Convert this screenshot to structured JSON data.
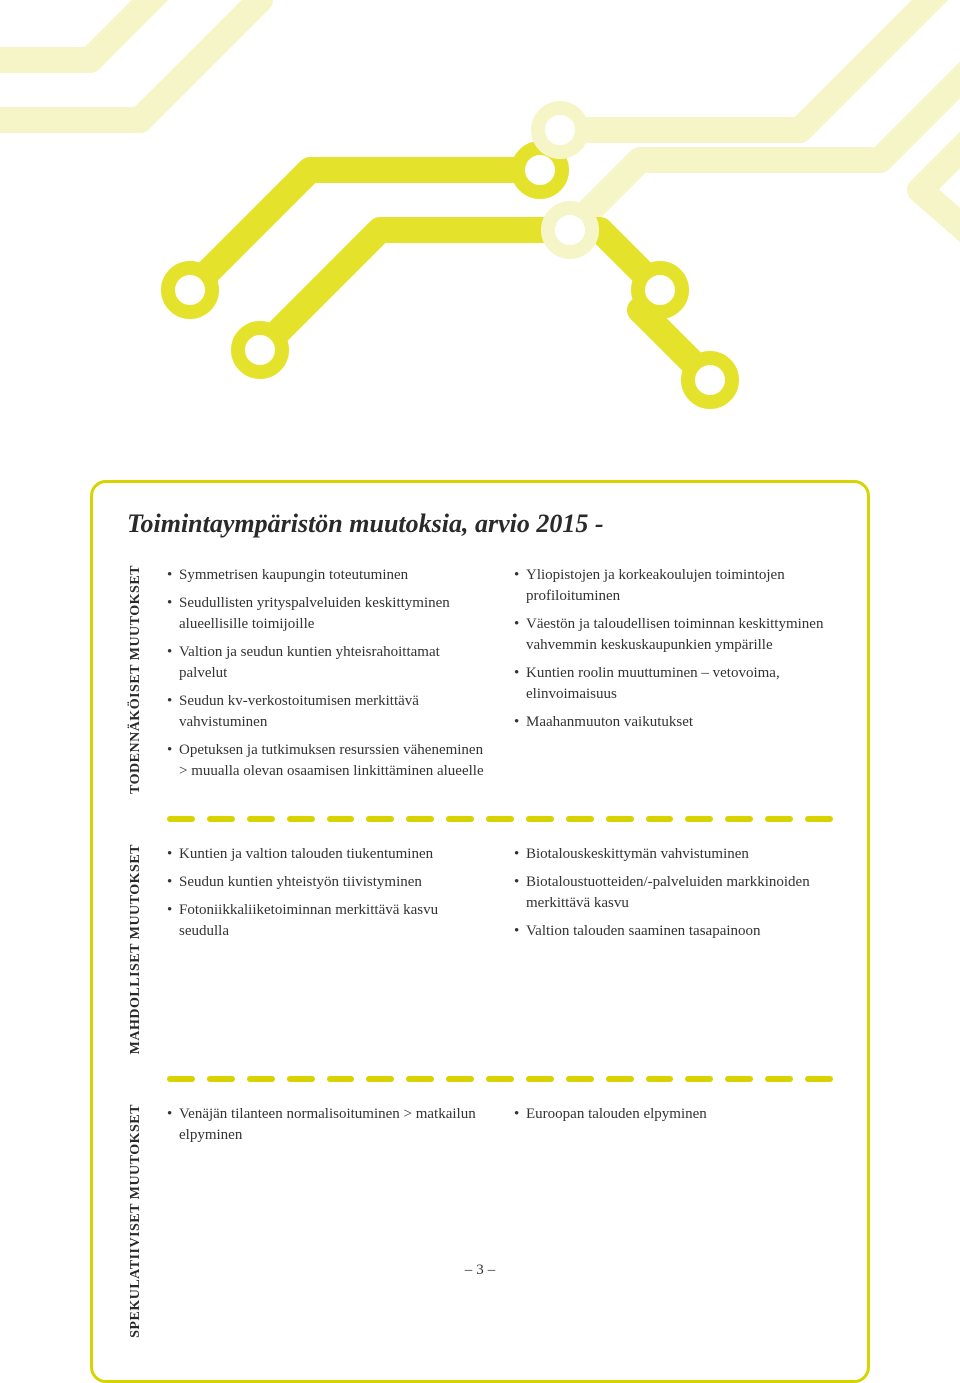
{
  "colors": {
    "accent": "#d7d200",
    "accent_light": "#f4f3b0",
    "text": "#2a2a2a",
    "background": "#ffffff"
  },
  "title": "Toimintaympäristön muutoksia, arvio 2015 -",
  "sections": [
    {
      "label": "TODENNÄKÖISET MUUTOKSET",
      "left": [
        "Symmetrisen kaupungin toteutuminen",
        "Seudullisten yrityspalveluiden keskittyminen alueellisille toimijoille",
        "Valtion ja seudun kuntien yhteisrahoittamat palvelut",
        "Seudun kv-verkostoitumisen merkittävä vahvistuminen",
        "Opetuksen ja tutkimuksen resurssien väheneminen > muualla olevan osaamisen linkittäminen alueelle"
      ],
      "right": [
        "Yliopistojen ja korkeakoulujen toimintojen profiloituminen",
        "Väestön ja taloudellisen toiminnan keskittyminen vahvemmin keskuskaupunkien ympärille",
        "Kuntien roolin muuttuminen – vetovoima, elinvoimaisuus",
        "Maahanmuuton vaikutukset"
      ]
    },
    {
      "label": "MAHDOLLISET MUUTOKSET",
      "left": [
        "Kuntien ja valtion talouden tiukentuminen",
        "Seudun kuntien yhteistyön tiivistyminen",
        "Fotoniikkaliiketoiminnan merkittävä kasvu seudulla"
      ],
      "right": [
        "Biotalouskeskittymän vahvistuminen",
        "Biotaloustuotteiden/-palveluiden markkinoiden merkittävä kasvu",
        "Valtion talouden saaminen tasapainoon"
      ]
    },
    {
      "label": "SPEKULATIIVISET MUUTOKSET",
      "left": [
        "Venäjän tilanteen normalisoituminen > matkailun elpyminen"
      ],
      "right": [
        "Euroopan talouden elpyminen"
      ]
    }
  ],
  "pagenum": "3",
  "divider": {
    "dash_count": 17,
    "color": "#d7d200"
  }
}
